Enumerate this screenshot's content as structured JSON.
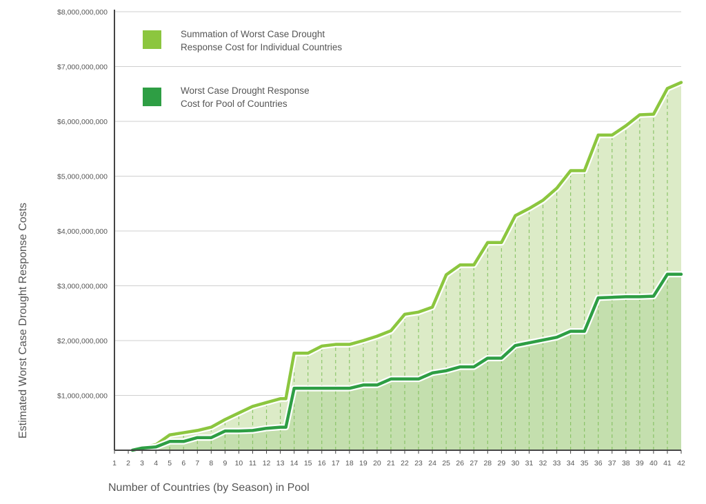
{
  "chart_data": {
    "type": "area",
    "title": "",
    "xlabel": "Number of Countries (by Season) in Pool",
    "ylabel": "Estimated Worst Case Drought Response Costs",
    "ylim": [
      0,
      8000000000
    ],
    "xlim": [
      1,
      42
    ],
    "y_ticks": [
      0,
      1000000000,
      2000000000,
      3000000000,
      4000000000,
      5000000000,
      6000000000,
      7000000000,
      8000000000
    ],
    "y_tick_labels": [
      "",
      "$1,000,000,000",
      "$2,000,000,000",
      "$3,000,000,000",
      "$4,000,000,000",
      "$5,000,000,000",
      "$6,000,000,000",
      "$7,000,000,000",
      "$8,000,000,000"
    ],
    "x_ticks": [
      1,
      2,
      3,
      4,
      5,
      6,
      7,
      8,
      9,
      10,
      11,
      12,
      13,
      14,
      15,
      16,
      17,
      18,
      19,
      20,
      21,
      22,
      23,
      24,
      25,
      26,
      27,
      28,
      29,
      30,
      31,
      32,
      33,
      34,
      35,
      36,
      37,
      38,
      39,
      40,
      41,
      42
    ],
    "grid": "horizontal",
    "series": [
      {
        "name": "Summation of Worst Case Drought Response Cost for Individual Countries",
        "legend_lines": [
          "Summation of Worst Case Drought",
          "Response Cost for Individual Countries"
        ],
        "color": "#8cc63f",
        "fill": "#dcebc7",
        "points": [
          [
            2.3,
            0
          ],
          [
            3,
            50000000
          ],
          [
            4,
            100000000
          ],
          [
            5,
            280000000
          ],
          [
            6,
            320000000
          ],
          [
            7,
            360000000
          ],
          [
            8,
            420000000
          ],
          [
            9,
            560000000
          ],
          [
            10,
            680000000
          ],
          [
            11,
            800000000
          ],
          [
            12,
            870000000
          ],
          [
            13,
            940000000
          ],
          [
            13.4,
            940000000
          ],
          [
            14,
            1770000000
          ],
          [
            15,
            1770000000
          ],
          [
            16,
            1900000000
          ],
          [
            17,
            1930000000
          ],
          [
            18,
            1930000000
          ],
          [
            19,
            2000000000
          ],
          [
            20,
            2080000000
          ],
          [
            21,
            2180000000
          ],
          [
            22,
            2480000000
          ],
          [
            23,
            2520000000
          ],
          [
            24,
            2610000000
          ],
          [
            25,
            3200000000
          ],
          [
            26,
            3380000000
          ],
          [
            27,
            3380000000
          ],
          [
            28,
            3790000000
          ],
          [
            29,
            3790000000
          ],
          [
            30,
            4280000000
          ],
          [
            31,
            4410000000
          ],
          [
            32,
            4560000000
          ],
          [
            33,
            4780000000
          ],
          [
            34,
            5100000000
          ],
          [
            35,
            5100000000
          ],
          [
            36,
            5750000000
          ],
          [
            37,
            5750000000
          ],
          [
            38,
            5920000000
          ],
          [
            39,
            6120000000
          ],
          [
            40,
            6130000000
          ],
          [
            41,
            6600000000
          ],
          [
            42,
            6710000000
          ]
        ]
      },
      {
        "name": "Worst Case Drought Response Cost for Pool of Countries",
        "legend_lines": [
          "Worst Case Drought Response",
          "Cost for Pool of Countries"
        ],
        "color": "#2e9e44",
        "fill": "#c4dfae",
        "points": [
          [
            2.3,
            0
          ],
          [
            3,
            40000000
          ],
          [
            4,
            60000000
          ],
          [
            5,
            160000000
          ],
          [
            6,
            160000000
          ],
          [
            7,
            230000000
          ],
          [
            8,
            230000000
          ],
          [
            9,
            350000000
          ],
          [
            10,
            350000000
          ],
          [
            11,
            360000000
          ],
          [
            12,
            400000000
          ],
          [
            13,
            420000000
          ],
          [
            13.4,
            420000000
          ],
          [
            14,
            1130000000
          ],
          [
            15,
            1130000000
          ],
          [
            16,
            1130000000
          ],
          [
            17,
            1130000000
          ],
          [
            18,
            1130000000
          ],
          [
            19,
            1190000000
          ],
          [
            20,
            1190000000
          ],
          [
            21,
            1300000000
          ],
          [
            22,
            1300000000
          ],
          [
            23,
            1300000000
          ],
          [
            24,
            1410000000
          ],
          [
            25,
            1450000000
          ],
          [
            26,
            1520000000
          ],
          [
            27,
            1520000000
          ],
          [
            28,
            1680000000
          ],
          [
            29,
            1680000000
          ],
          [
            30,
            1910000000
          ],
          [
            31,
            1960000000
          ],
          [
            32,
            2010000000
          ],
          [
            33,
            2060000000
          ],
          [
            34,
            2170000000
          ],
          [
            35,
            2170000000
          ],
          [
            36,
            2780000000
          ],
          [
            37,
            2790000000
          ],
          [
            38,
            2800000000
          ],
          [
            39,
            2800000000
          ],
          [
            40,
            2810000000
          ],
          [
            41,
            3210000000
          ],
          [
            42,
            3210000000
          ]
        ]
      }
    ]
  },
  "colors": {
    "grid": "#cfcfcf",
    "axis": "#444444",
    "text": "#555555",
    "dash": "#7fbf5a"
  }
}
